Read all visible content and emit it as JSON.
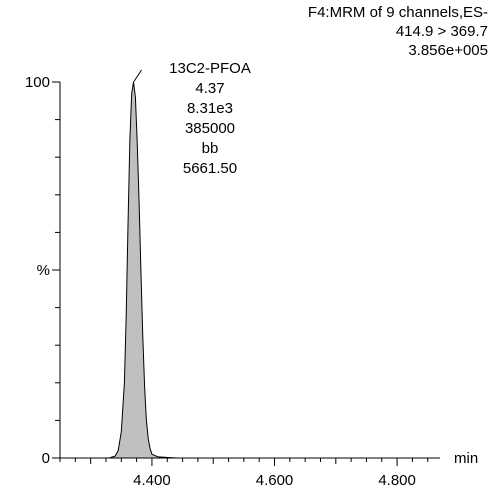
{
  "header": {
    "line1": "F4:MRM of 9 channels,ES-",
    "line2": "414.9 > 369.7",
    "line3": "3.856e+005"
  },
  "peak_annotation": {
    "compound": "13C2-PFOA",
    "retention_time": "4.37",
    "height": "8.31e3",
    "area": "385000",
    "integration_type": "bb",
    "value": "5661.50"
  },
  "chart_data": {
    "type": "area",
    "xlabel": "min",
    "ylabel": "%",
    "xlim": [
      4.25,
      4.87
    ],
    "ylim": [
      0,
      100
    ],
    "x_major_ticks": [
      4.4,
      4.6,
      4.8
    ],
    "x_tick_labels": [
      "4.400",
      "4.600",
      "4.800"
    ],
    "x_minor_step": 0.025,
    "y_tick_labels": [
      "0",
      "%",
      "100"
    ],
    "y_minor_step": 10,
    "grid": false,
    "fill_color": "#c0c0c0",
    "series": [
      {
        "x": [
          4.25,
          4.3,
          4.33,
          4.34,
          4.345,
          4.35,
          4.355,
          4.358,
          4.361,
          4.364,
          4.367,
          4.37,
          4.373,
          4.376,
          4.379,
          4.382,
          4.385,
          4.388,
          4.391,
          4.394,
          4.397,
          4.4,
          4.41,
          4.44,
          4.87
        ],
        "y": [
          0,
          0,
          0,
          0.5,
          2,
          7,
          20,
          38,
          62,
          85,
          97,
          100,
          96,
          84,
          68,
          50,
          33,
          19,
          10,
          5,
          2.5,
          1,
          0.3,
          0,
          0
        ]
      }
    ]
  }
}
